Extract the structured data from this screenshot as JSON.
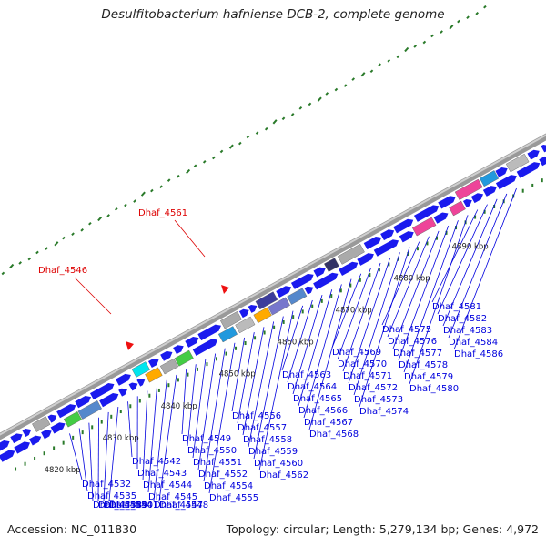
{
  "title": "Desulfitobacterium hafniense DCB-2, complete genome",
  "footer": {
    "accession": "Accession: NC_011830",
    "topology": "Topology: circular; Length: 5,279,134 bp; Genes: 4,972"
  },
  "scale_labels": [
    "4820 kbp",
    "4830 kbp",
    "4840 kbp",
    "4850 kbp",
    "4860 kbp",
    "4870 kbp",
    "4880 kbp",
    "4890 kbp"
  ],
  "highlight_labels": [
    "Dhaf_4546",
    "Dhaf_4561"
  ],
  "gene_labels": [
    "Dhaf_4532",
    "Dhaf_4535",
    "Dhaf_4538",
    "Dhaf_4539",
    "Dhaf_4540",
    "Dhaf_4541",
    "Dhaf_4542",
    "Dhaf_4543",
    "Dhaf_4544",
    "Dhaf_4545",
    "Dhaf_4547",
    "Dhaf_4548",
    "Dhaf_4549",
    "Dhaf_4550",
    "Dhaf_4551",
    "Dhaf_4552",
    "Dhaf_4554",
    "Dhaf_4555",
    "Dhaf_4556",
    "Dhaf_4557",
    "Dhaf_4558",
    "Dhaf_4559",
    "Dhaf_4560",
    "Dhaf_4562",
    "Dhaf_4563",
    "Dhaf_4564",
    "Dhaf_4565",
    "Dhaf_4566",
    "Dhaf_4567",
    "Dhaf_4568",
    "Dhaf_4569",
    "Dhaf_4570",
    "Dhaf_4571",
    "Dhaf_4572",
    "Dhaf_4573",
    "Dhaf_4574",
    "Dhaf_4575",
    "Dhaf_4576",
    "Dhaf_4577",
    "Dhaf_4578",
    "Dhaf_4579",
    "Dhaf_4580",
    "Dhaf_4581",
    "Dhaf_4582",
    "Dhaf_4583",
    "Dhaf_4584",
    "Dhaf_4586"
  ],
  "colors": {
    "gene_default": "#1a1aee",
    "highlight": "#ee1111",
    "label_blue": "#0000dd",
    "label_red": "#dd0000",
    "backbone": "#888888",
    "tick": "#2a7a2a"
  }
}
